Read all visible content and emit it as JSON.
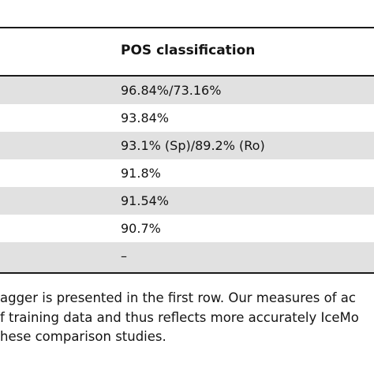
{
  "table": {
    "header": "POS classification",
    "rows": [
      "96.84%/73.16%",
      "93.84%",
      "93.1% (Sp)/89.2% (Ro)",
      "91.8%",
      "91.54%",
      "90.7%",
      "–"
    ]
  },
  "caption": {
    "lines": [
      "agger is presented in the first row. Our measures of ac",
      "f training data and thus reflects more accurately IceMo",
      "hese comparison studies."
    ]
  }
}
